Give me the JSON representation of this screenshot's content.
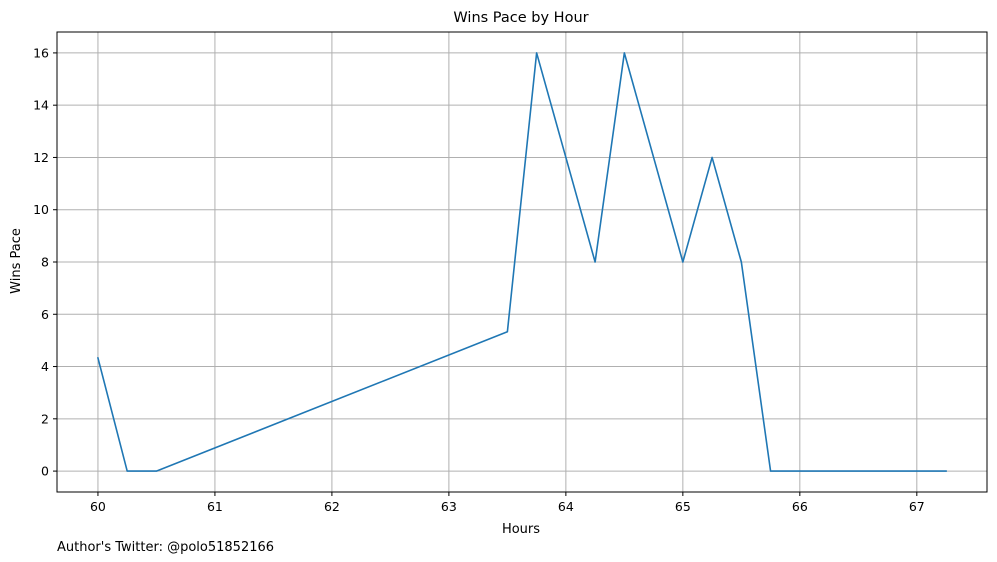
{
  "chart_data": {
    "type": "line",
    "title": "Wins Pace by Hour",
    "xlabel": "Hours",
    "ylabel": "Wins Pace",
    "xlim": [
      59.65,
      67.6
    ],
    "ylim": [
      -0.8,
      16.8
    ],
    "xticks": [
      60,
      61,
      62,
      63,
      64,
      65,
      66,
      67
    ],
    "yticks": [
      0,
      2,
      4,
      6,
      8,
      10,
      12,
      14,
      16
    ],
    "grid": true,
    "series": [
      {
        "color": "#1f77b4",
        "x": [
          60.0,
          60.25,
          60.5,
          63.5,
          63.75,
          64.0,
          64.25,
          64.5,
          64.75,
          65.0,
          65.25,
          65.5,
          65.75,
          66.0,
          66.25,
          66.5,
          66.75,
          67.0,
          67.25
        ],
        "y": [
          4.33,
          0,
          0,
          5.33,
          16,
          12,
          8,
          16,
          12,
          8,
          12,
          8,
          0,
          0,
          0,
          0,
          0,
          0,
          0
        ]
      }
    ]
  },
  "footnote": "Author's Twitter: @polo51852166"
}
